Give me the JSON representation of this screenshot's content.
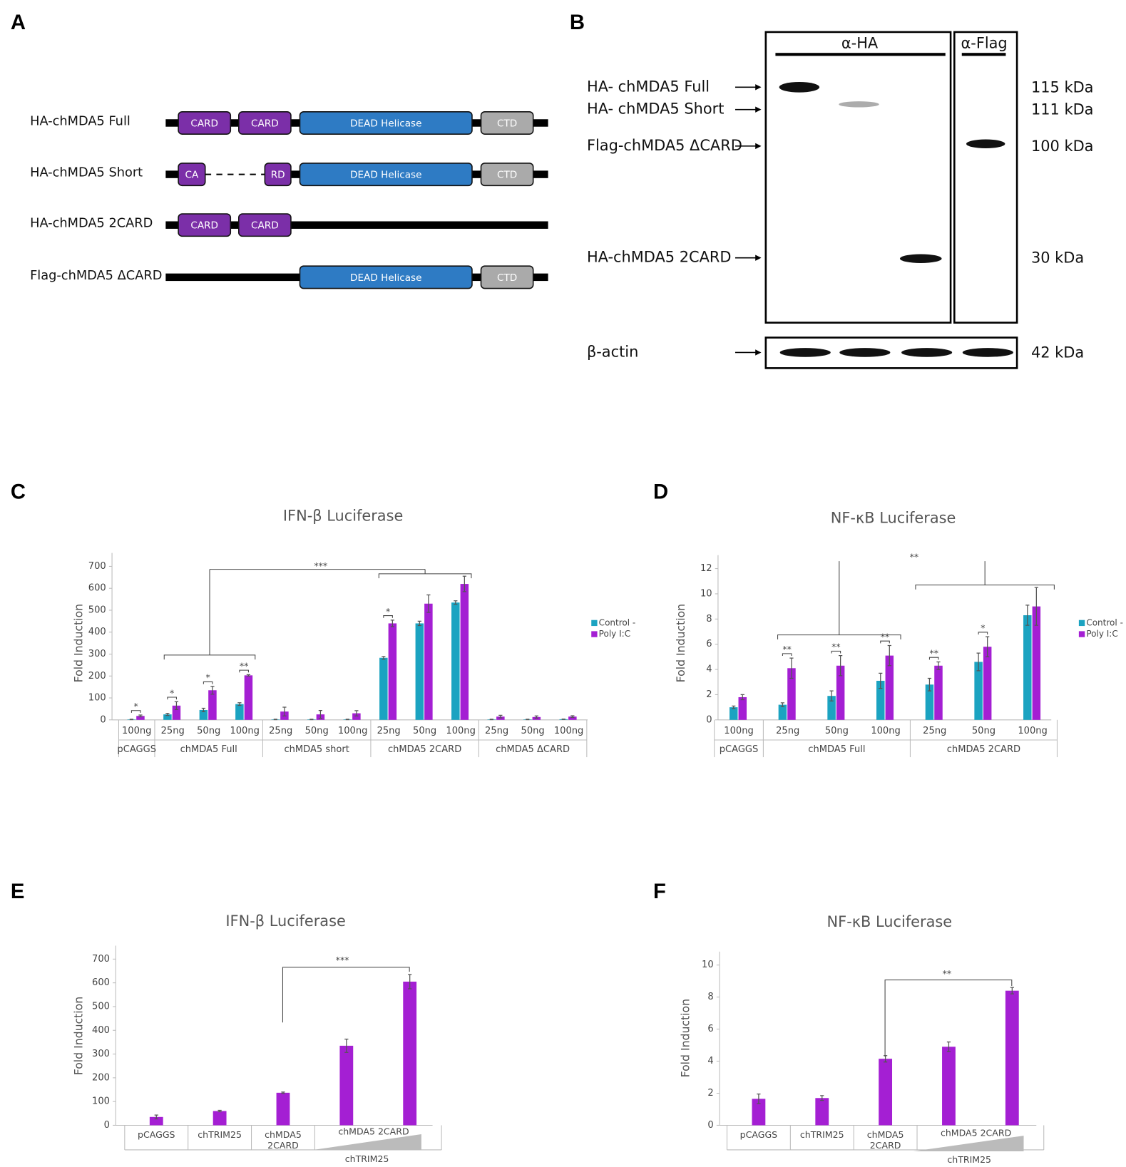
{
  "panel_a": {
    "label": "A",
    "constructs": [
      {
        "name": "HA-chMDA5 Full",
        "domains": [
          "CARD",
          "CARD",
          "DEAD Helicase",
          "CTD"
        ]
      },
      {
        "name": "HA-chMDA5 Short",
        "domains": [
          "CA",
          "RD",
          "DEAD Helicase",
          "CTD"
        ]
      },
      {
        "name": "HA-chMDA5 2CARD",
        "domains": [
          "CARD",
          "CARD"
        ]
      },
      {
        "name": "Flag-chMDA5 ΔCARD",
        "domains": [
          "DEAD Helicase",
          "CTD"
        ]
      }
    ]
  },
  "panel_b": {
    "label": "B",
    "antibodies": [
      "α-HA",
      "α-Flag"
    ],
    "bands": [
      "HA- chMDA5 Full",
      "HA- chMDA5 Short",
      "Flag-chMDA5 ΔCARD",
      "HA-chMDA5 2CARD"
    ],
    "markers": [
      "115 kDa",
      "111 kDa",
      "100 kDa",
      "30 kDa"
    ],
    "loading_control": "β-actin",
    "loading_marker": "42 kDa"
  },
  "chart_data": [
    {
      "type": "bar",
      "label": "C",
      "title": "IFN-β Luciferase",
      "y_label": "Fold Induction",
      "groups": [
        {
          "name": "pCAGGS",
          "categories": [
            "100ng"
          ]
        },
        {
          "name": "chMDA5 Full",
          "categories": [
            "25ng",
            "50ng",
            "100ng"
          ]
        },
        {
          "name": "chMDA5 short",
          "categories": [
            "25ng",
            "50ng",
            "100ng"
          ]
        },
        {
          "name": "chMDA5 2CARD",
          "categories": [
            "25ng",
            "50ng",
            "100ng"
          ]
        },
        {
          "name": "chMDA5 ΔCARD",
          "categories": [
            "25ng",
            "50ng",
            "100ng"
          ]
        }
      ],
      "series": [
        {
          "name": "Control -",
          "color": "#1ba3c1",
          "values": [
            2,
            25,
            45,
            72,
            2,
            2,
            2,
            283,
            440,
            535,
            2,
            2,
            3
          ],
          "errors": [
            1,
            5,
            8,
            6,
            1,
            1,
            1,
            6,
            10,
            8,
            1,
            1,
            1
          ]
        },
        {
          "name": "Poly I:C",
          "color": "#a41fd3",
          "values": [
            18,
            65,
            135,
            203,
            38,
            25,
            30,
            440,
            530,
            620,
            15,
            13,
            15
          ],
          "errors": [
            4,
            18,
            18,
            3,
            20,
            18,
            12,
            15,
            40,
            35,
            6,
            5,
            4
          ]
        }
      ],
      "pair_labels": [
        "*",
        "*",
        "*",
        "**",
        null,
        null,
        null,
        "*",
        null,
        null,
        null,
        null,
        null
      ],
      "group_annotation": "***",
      "ylim": [
        0,
        700
      ],
      "yticks": [
        0,
        100,
        200,
        300,
        400,
        500,
        600,
        700
      ],
      "legend": "right"
    },
    {
      "type": "bar",
      "label": "D",
      "title": "NF-κB Luciferase",
      "y_label": "Fold Induction",
      "groups": [
        {
          "name": "pCAGGS",
          "categories": [
            "100ng"
          ]
        },
        {
          "name": "chMDA5 Full",
          "categories": [
            "25ng",
            "50ng",
            "100ng"
          ]
        },
        {
          "name": "chMDA5 2CARD",
          "categories": [
            "25ng",
            "50ng",
            "100ng"
          ]
        }
      ],
      "series": [
        {
          "name": "Control -",
          "color": "#1ba3c1",
          "values": [
            1.0,
            1.2,
            1.9,
            3.1,
            2.8,
            4.6,
            8.3
          ],
          "errors": [
            0.1,
            0.15,
            0.4,
            0.6,
            0.5,
            0.7,
            0.8
          ]
        },
        {
          "name": "Poly I:C",
          "color": "#a41fd3",
          "values": [
            1.8,
            4.1,
            4.3,
            5.1,
            4.3,
            5.8,
            9.0
          ],
          "errors": [
            0.2,
            0.8,
            0.8,
            0.8,
            0.3,
            0.8,
            1.5
          ]
        }
      ],
      "pair_labels": [
        null,
        "**",
        "**",
        "**",
        "**",
        "*",
        null
      ],
      "group_annotation": "**",
      "ylim": [
        0,
        12
      ],
      "yticks": [
        0,
        2,
        4,
        6,
        8,
        10,
        12
      ],
      "legend": "right"
    },
    {
      "type": "bar",
      "label": "E",
      "title": "IFN-β Luciferase",
      "y_label": "Fold Induction",
      "categories": [
        "pCAGGS",
        "chTRIM25",
        "chMDA5 2CARD",
        null,
        null
      ],
      "series": [
        {
          "name": null,
          "color": "#a41fd3",
          "values": [
            35,
            60,
            137,
            335,
            605
          ],
          "errors": [
            8,
            3,
            3,
            28,
            30
          ]
        }
      ],
      "gradient_label": "chMDA5 2CARD",
      "gradient_sublabel": "chTRIM25",
      "group_annotation": "***",
      "ylim": [
        0,
        700
      ],
      "yticks": [
        0,
        100,
        200,
        300,
        400,
        500,
        600,
        700
      ]
    },
    {
      "type": "bar",
      "label": "F",
      "title": "NF-κB Luciferase",
      "y_label": "Fold Induction",
      "categories": [
        "pCAGGS",
        "chTRIM25",
        "chMDA5 2CARD",
        null,
        null
      ],
      "series": [
        {
          "name": null,
          "color": "#a41fd3",
          "values": [
            1.65,
            1.7,
            4.15,
            4.9,
            8.4
          ],
          "errors": [
            0.3,
            0.15,
            0.2,
            0.3,
            0.2
          ]
        }
      ],
      "gradient_label": "chMDA5 2CARD",
      "gradient_sublabel": "chTRIM25",
      "group_annotation": "**",
      "ylim": [
        0,
        10
      ],
      "yticks": [
        0,
        2,
        4,
        6,
        8,
        10
      ]
    }
  ]
}
